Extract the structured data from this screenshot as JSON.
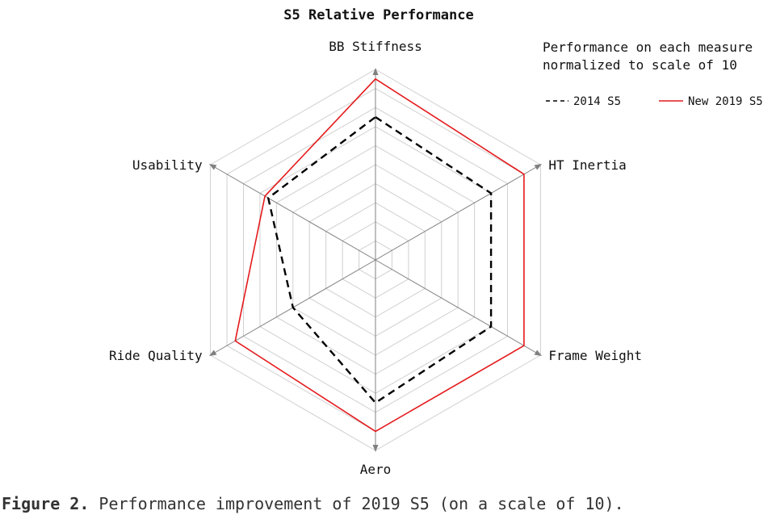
{
  "chart_data": {
    "type": "radar",
    "title": "S5 Relative Performance",
    "axes": [
      "BB Stiffness",
      "HT Inertia",
      "Frame Weight",
      "Aero",
      "Ride Quality",
      "Usability"
    ],
    "scale_max": 10,
    "grid_levels": 10,
    "series": [
      {
        "name": "2014 S5",
        "values": [
          7.5,
          7.0,
          7.0,
          7.5,
          5.0,
          6.5
        ],
        "color": "#000000",
        "style": "dashed"
      },
      {
        "name": "New 2019 S5",
        "values": [
          9.5,
          9.0,
          9.0,
          9.0,
          8.5,
          6.7
        ],
        "color": "#e41a1c",
        "style": "solid"
      }
    ],
    "note_lines": [
      "Performance on each measure",
      "normalized to scale of 10"
    ],
    "legend_placement": "top-right"
  },
  "caption": {
    "label": "Figure 2.",
    "text": "Performance improvement of 2019 S5 (on a scale of 10)."
  },
  "colors": {
    "grid": "#d0d0d0",
    "axis": "#808080"
  }
}
